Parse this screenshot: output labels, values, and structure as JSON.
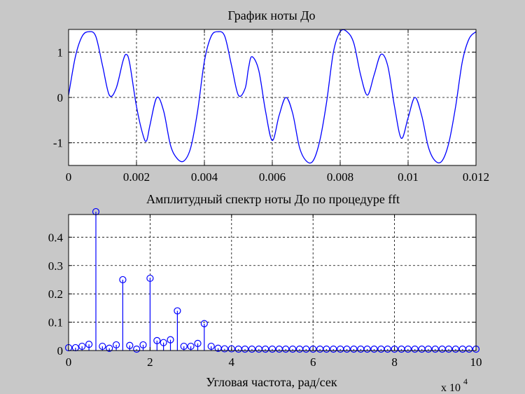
{
  "colors": {
    "background": "#c8c8c8",
    "plot_area": "#ffffff",
    "line": "#0000ff",
    "axis": "#000000",
    "grid": "#000000"
  },
  "chart_data": [
    {
      "type": "line",
      "title": "График ноты До",
      "xlabel": "",
      "ylabel": "",
      "xlim": [
        0,
        0.012
      ],
      "ylim": [
        -1.5,
        1.5
      ],
      "grid": true,
      "x_ticks": [
        0,
        0.002,
        0.004,
        0.006,
        0.008,
        0.01,
        0.012
      ],
      "x_tick_labels": [
        "0",
        "0.002",
        "0.004",
        "0.006",
        "0.008",
        "0.01",
        "0.012"
      ],
      "y_ticks": [
        -1,
        0,
        1
      ],
      "y_tick_labels": [
        "-1",
        "0",
        "1"
      ],
      "series": [
        {
          "points": [
            [
              0.0,
              0.05
            ],
            [
              0.0002,
              0.9
            ],
            [
              0.0004,
              1.35
            ],
            [
              0.0006,
              1.45
            ],
            [
              0.0008,
              1.35
            ],
            [
              0.001,
              0.7
            ],
            [
              0.0012,
              0.05
            ],
            [
              0.0014,
              0.2
            ],
            [
              0.0016,
              0.8
            ],
            [
              0.0017,
              0.95
            ],
            [
              0.0018,
              0.75
            ],
            [
              0.002,
              -0.2
            ],
            [
              0.0022,
              -0.85
            ],
            [
              0.0023,
              -0.95
            ],
            [
              0.0024,
              -0.6
            ],
            [
              0.0026,
              0.0
            ],
            [
              0.0028,
              -0.3
            ],
            [
              0.003,
              -1.05
            ],
            [
              0.0032,
              -1.35
            ],
            [
              0.0034,
              -1.4
            ],
            [
              0.0036,
              -1.1
            ],
            [
              0.0038,
              -0.3
            ],
            [
              0.004,
              0.8
            ],
            [
              0.0042,
              1.35
            ],
            [
              0.0044,
              1.45
            ],
            [
              0.0046,
              1.35
            ],
            [
              0.0048,
              0.7
            ],
            [
              0.005,
              0.05
            ],
            [
              0.0052,
              0.2
            ],
            [
              0.0053,
              0.65
            ],
            [
              0.0054,
              0.9
            ],
            [
              0.0056,
              0.6
            ],
            [
              0.0058,
              -0.3
            ],
            [
              0.006,
              -0.95
            ],
            [
              0.0062,
              -0.4
            ],
            [
              0.0064,
              0.0
            ],
            [
              0.0066,
              -0.35
            ],
            [
              0.0068,
              -1.1
            ],
            [
              0.007,
              -1.4
            ],
            [
              0.0072,
              -1.4
            ],
            [
              0.0074,
              -0.95
            ],
            [
              0.0076,
              -0.1
            ],
            [
              0.0078,
              1.0
            ],
            [
              0.008,
              1.45
            ],
            [
              0.0082,
              1.45
            ],
            [
              0.0084,
              1.2
            ],
            [
              0.0086,
              0.5
            ],
            [
              0.0088,
              0.05
            ],
            [
              0.009,
              0.5
            ],
            [
              0.0092,
              0.95
            ],
            [
              0.0094,
              0.7
            ],
            [
              0.0096,
              -0.2
            ],
            [
              0.0098,
              -0.9
            ],
            [
              0.01,
              -0.45
            ],
            [
              0.0102,
              0.0
            ],
            [
              0.0104,
              -0.4
            ],
            [
              0.0106,
              -1.1
            ],
            [
              0.0108,
              -1.4
            ],
            [
              0.011,
              -1.4
            ],
            [
              0.0112,
              -1.0
            ],
            [
              0.0114,
              -0.2
            ],
            [
              0.0116,
              0.8
            ],
            [
              0.0118,
              1.3
            ],
            [
              0.012,
              1.45
            ]
          ]
        }
      ]
    },
    {
      "type": "stem",
      "title": "Амплитудный спектр ноты До по процедуре fft",
      "xlabel": "Угловая частота,  рад/сек",
      "ylabel": "",
      "x_multiplier_label": "x 10",
      "x_multiplier_exponent": "4",
      "xlim": [
        0,
        10
      ],
      "ylim": [
        0,
        0.48
      ],
      "grid": true,
      "x_ticks": [
        0,
        2,
        4,
        6,
        8,
        10
      ],
      "x_tick_labels": [
        "0",
        "2",
        "4",
        "6",
        "8",
        "10"
      ],
      "y_ticks": [
        0,
        0.1,
        0.2,
        0.3,
        0.4
      ],
      "y_tick_labels": [
        "0",
        "0.1",
        "0.2",
        "0.3",
        "0.4"
      ],
      "series": [
        {
          "x": [
            0.0,
            0.17,
            0.33,
            0.5,
            0.67,
            0.83,
            1.0,
            1.17,
            1.33,
            1.5,
            1.67,
            1.83,
            2.0,
            2.17,
            2.33,
            2.5,
            2.67,
            2.83,
            3.0,
            3.17,
            3.33,
            3.5,
            3.67,
            3.83,
            4.0,
            4.17,
            4.33,
            4.5,
            4.67,
            4.83,
            5.0,
            5.17,
            5.33,
            5.5,
            5.67,
            5.83,
            6.0,
            6.17,
            6.33,
            6.5,
            6.67,
            6.83,
            7.0,
            7.17,
            7.33,
            7.5,
            7.67,
            7.83,
            8.0,
            8.17,
            8.33,
            8.5,
            8.67,
            8.83,
            9.0,
            9.17,
            9.33,
            9.5,
            9.67,
            9.83,
            10.0
          ],
          "values": [
            0.01,
            0.01,
            0.015,
            0.022,
            0.49,
            0.015,
            0.008,
            0.02,
            0.25,
            0.018,
            0.005,
            0.02,
            0.255,
            0.035,
            0.028,
            0.038,
            0.14,
            0.015,
            0.015,
            0.025,
            0.095,
            0.015,
            0.008,
            0.006,
            0.006,
            0.005,
            0.005,
            0.005,
            0.005,
            0.005,
            0.005,
            0.005,
            0.005,
            0.005,
            0.005,
            0.005,
            0.005,
            0.005,
            0.005,
            0.005,
            0.005,
            0.005,
            0.005,
            0.005,
            0.005,
            0.005,
            0.005,
            0.005,
            0.005,
            0.005,
            0.005,
            0.005,
            0.005,
            0.005,
            0.005,
            0.005,
            0.005,
            0.005,
            0.005,
            0.005,
            0.005
          ]
        }
      ]
    }
  ]
}
